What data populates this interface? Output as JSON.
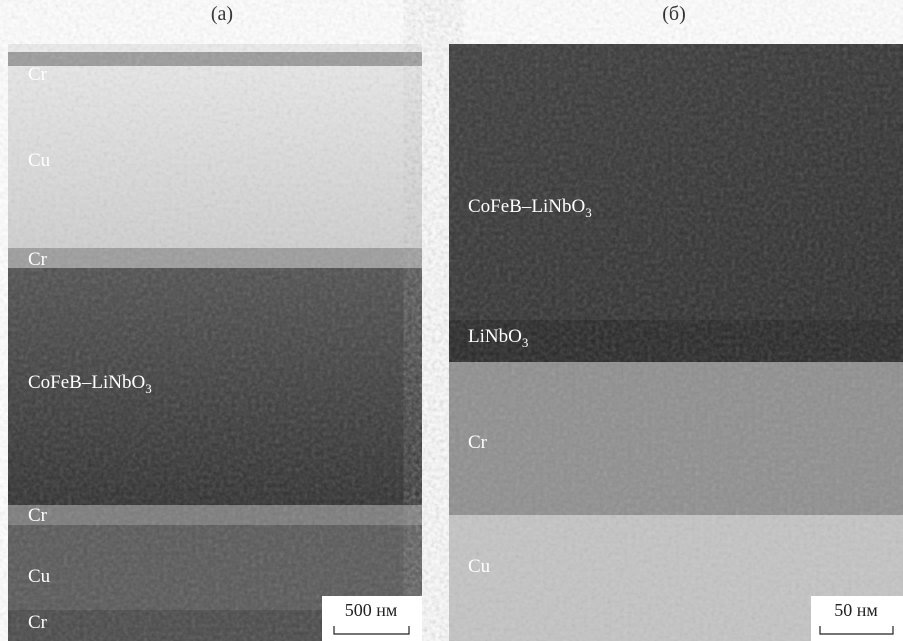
{
  "panels": [
    {
      "tag": "(а)",
      "scale_bar": "500 нм",
      "labels": [
        {
          "text": "Cr"
        },
        {
          "text": "Cu"
        },
        {
          "text": "Cr"
        },
        {
          "text": "CoFeB–LiNbO",
          "sub": "3"
        },
        {
          "text": "Cr"
        },
        {
          "text": "Cu"
        },
        {
          "text": "Cr"
        }
      ]
    },
    {
      "tag": "(б)",
      "scale_bar": "50 нм",
      "labels": [
        {
          "text": "CoFeB–LiNbO",
          "sub": "3"
        },
        {
          "text": "LiNbO",
          "sub": "3"
        },
        {
          "text": "Cr"
        },
        {
          "text": "Cu"
        }
      ]
    }
  ]
}
